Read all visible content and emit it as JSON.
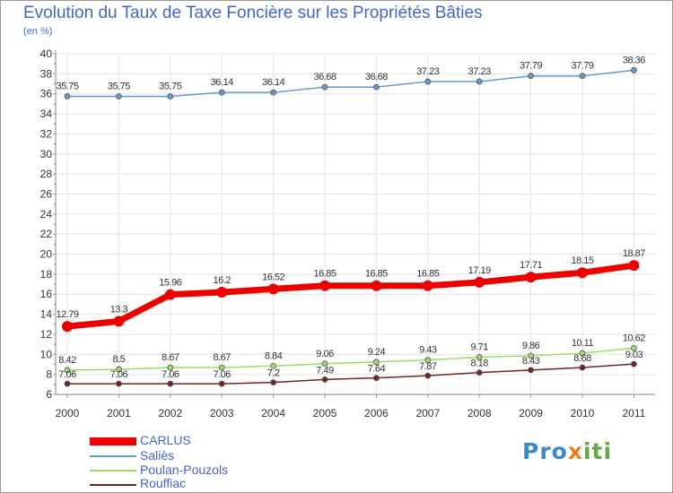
{
  "chart_data": {
    "type": "line",
    "title": "Evolution du Taux de Taxe Foncière sur les Propriétés Bâties",
    "ylabel": "(en %)",
    "xlabel": "",
    "ylim": [
      6,
      40
    ],
    "yticks": [
      6,
      8,
      10,
      12,
      14,
      16,
      18,
      20,
      22,
      24,
      26,
      28,
      30,
      32,
      34,
      36,
      38,
      40
    ],
    "categories": [
      "2000",
      "2001",
      "2002",
      "2003",
      "2004",
      "2005",
      "2006",
      "2007",
      "2008",
      "2009",
      "2010",
      "2011"
    ],
    "grid": true,
    "series": [
      {
        "name": "CARLUS",
        "color": "#ee0000",
        "values": [
          12.79,
          13.3,
          15.96,
          16.2,
          16.52,
          16.85,
          16.85,
          16.85,
          17.19,
          17.71,
          18.15,
          18.87
        ],
        "labels": [
          "12.79",
          "13.3",
          "15.96",
          "16.2",
          "16.52",
          "16.85",
          "16.85",
          "16.85",
          "17.19",
          "17.71",
          "18.15",
          "18.87"
        ]
      },
      {
        "name": "Saliès",
        "color": "#6699cc",
        "values": [
          35.75,
          35.75,
          35.75,
          36.14,
          36.14,
          36.68,
          36.68,
          37.23,
          37.23,
          37.79,
          37.79,
          38.36
        ],
        "labels": [
          "35.75",
          "35.75",
          "35.75",
          "36.14",
          "36.14",
          "36.68",
          "36.68",
          "37.23",
          "37.23",
          "37.79",
          "37.79",
          "38.36"
        ]
      },
      {
        "name": "Poulan-Pouzols",
        "color": "#99dd66",
        "values": [
          8.42,
          8.5,
          8.67,
          8.67,
          8.84,
          9.06,
          9.24,
          9.43,
          9.71,
          9.86,
          10.11,
          10.62
        ],
        "labels": [
          "8.42",
          "8.5",
          "8.67",
          "8.67",
          "8.84",
          "9.06",
          "9.24",
          "9.43",
          "9.71",
          "9.86",
          "10.11",
          "10.62"
        ]
      },
      {
        "name": "Rouffiac",
        "color": "#772222",
        "values": [
          7.06,
          7.06,
          7.06,
          7.06,
          7.2,
          7.49,
          7.64,
          7.87,
          8.18,
          8.43,
          8.68,
          9.03
        ],
        "labels": [
          "7.06",
          "7.06",
          "7.06",
          "7.06",
          "7.2",
          "7.49",
          "7.64",
          "7.87",
          "8.18",
          "8.43",
          "8.68",
          "9.03"
        ]
      }
    ]
  },
  "logo": {
    "p1": "Pro",
    "p2": "x",
    "p3": "iti"
  }
}
